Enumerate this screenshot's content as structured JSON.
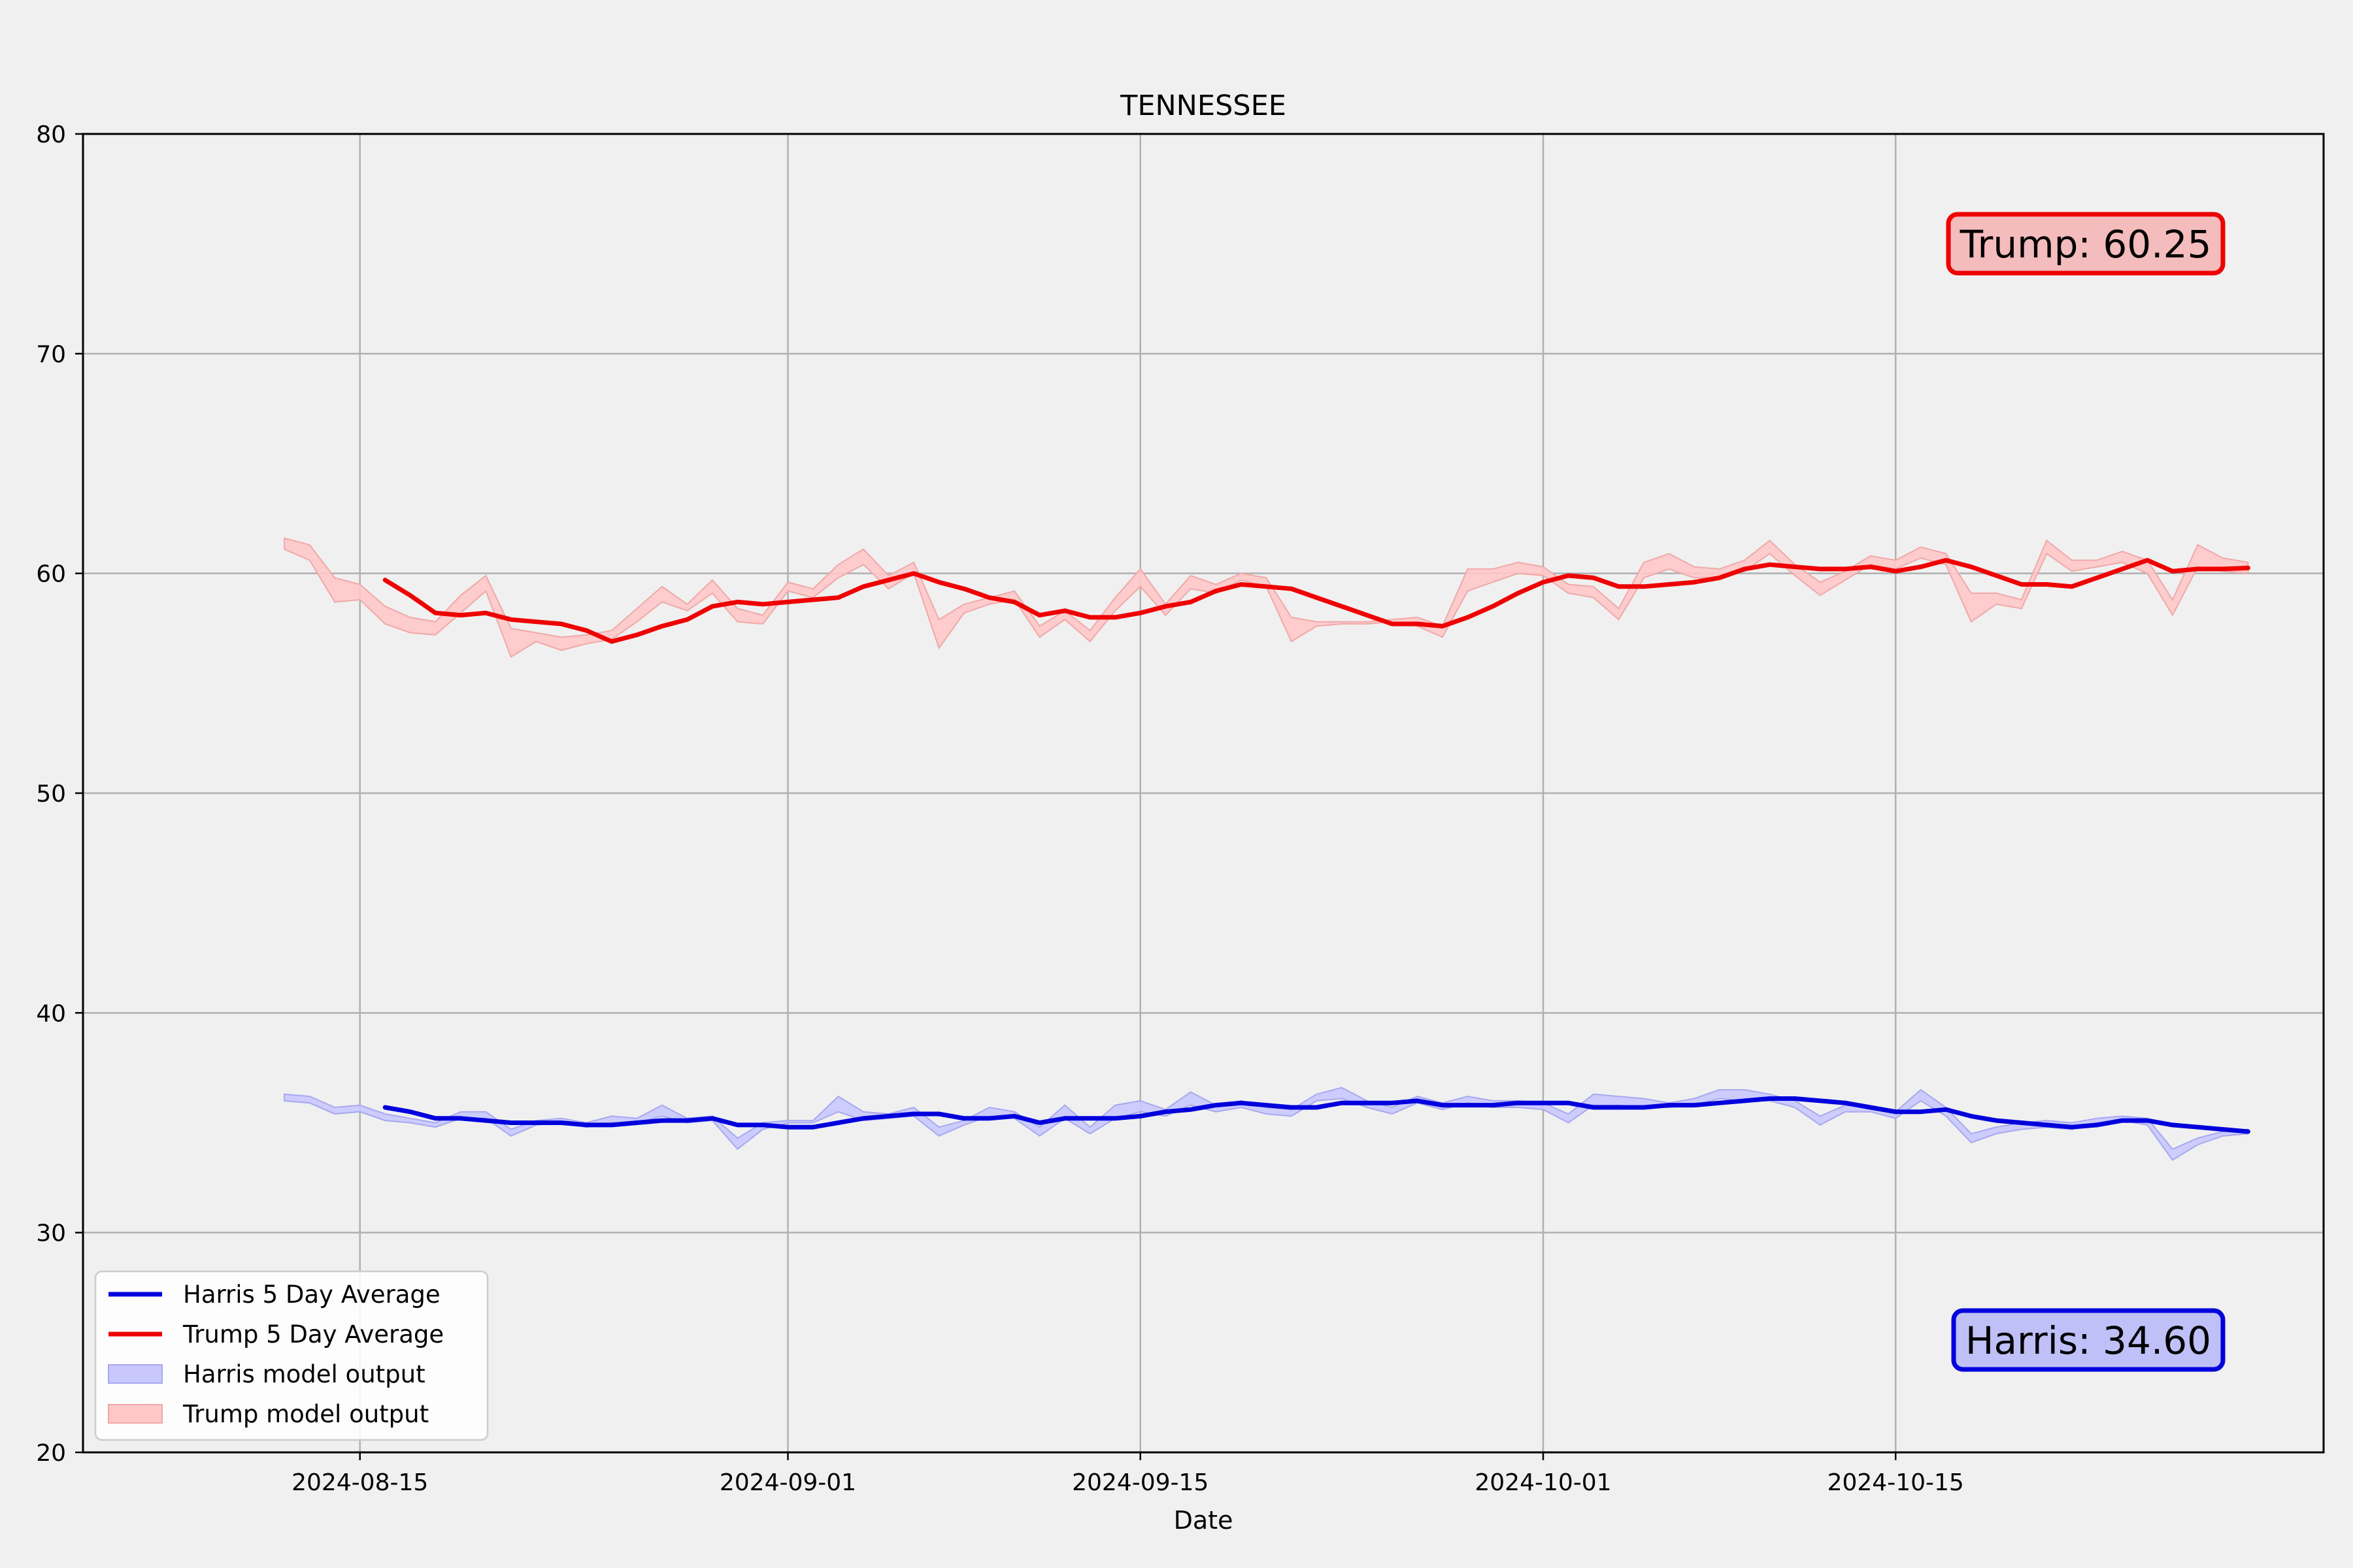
{
  "chart_data": {
    "type": "line",
    "title": "TENNESSEE",
    "xlabel": "Date",
    "ylabel": "",
    "ylim": [
      20,
      80
    ],
    "xlim": [
      "2024-08-04",
      "2024-11-01"
    ],
    "yticks": [
      20,
      30,
      40,
      50,
      60,
      70,
      80
    ],
    "xticks": [
      "2024-08-15",
      "2024-09-01",
      "2024-09-15",
      "2024-10-01",
      "2024-10-15"
    ],
    "grid": true,
    "legend_position": "lower-left",
    "colors": {
      "harris": "#0000dd",
      "trump": "#ee0000",
      "harris_band": "#c8c8ff",
      "trump_band": "#ffc8c8",
      "background": "#f0f0f0",
      "grid": "#b0b0b0"
    },
    "series": [
      {
        "name": "Harris 5 Day Average",
        "kind": "line",
        "color": "#0000dd",
        "x": [
          "2024-08-16",
          "2024-08-17",
          "2024-08-18",
          "2024-08-19",
          "2024-08-20",
          "2024-08-21",
          "2024-08-22",
          "2024-08-23",
          "2024-08-24",
          "2024-08-25",
          "2024-08-26",
          "2024-08-27",
          "2024-08-28",
          "2024-08-29",
          "2024-08-30",
          "2024-08-31",
          "2024-09-01",
          "2024-09-02",
          "2024-09-03",
          "2024-09-04",
          "2024-09-05",
          "2024-09-06",
          "2024-09-07",
          "2024-09-08",
          "2024-09-09",
          "2024-09-10",
          "2024-09-11",
          "2024-09-12",
          "2024-09-13",
          "2024-09-14",
          "2024-09-15",
          "2024-09-16",
          "2024-09-17",
          "2024-09-18",
          "2024-09-19",
          "2024-09-20",
          "2024-09-21",
          "2024-09-22",
          "2024-09-23",
          "2024-09-24",
          "2024-09-25",
          "2024-09-26",
          "2024-09-27",
          "2024-09-28",
          "2024-09-29",
          "2024-09-30",
          "2024-10-01",
          "2024-10-02",
          "2024-10-03",
          "2024-10-04",
          "2024-10-05",
          "2024-10-06",
          "2024-10-07",
          "2024-10-08",
          "2024-10-09",
          "2024-10-10",
          "2024-10-11",
          "2024-10-12",
          "2024-10-13",
          "2024-10-14",
          "2024-10-15",
          "2024-10-16",
          "2024-10-17",
          "2024-10-18",
          "2024-10-19",
          "2024-10-20",
          "2024-10-21",
          "2024-10-22",
          "2024-10-23",
          "2024-10-24",
          "2024-10-25",
          "2024-10-26",
          "2024-10-27",
          "2024-10-28",
          "2024-10-29"
        ],
        "y": [
          35.7,
          35.5,
          35.2,
          35.2,
          35.1,
          35.0,
          35.0,
          35.0,
          34.9,
          34.9,
          35.0,
          35.1,
          35.1,
          35.2,
          34.9,
          34.9,
          34.8,
          34.8,
          35.0,
          35.2,
          35.3,
          35.4,
          35.4,
          35.2,
          35.2,
          35.3,
          35.0,
          35.2,
          35.2,
          35.2,
          35.3,
          35.5,
          35.6,
          35.8,
          35.9,
          35.8,
          35.7,
          35.7,
          35.9,
          35.9,
          35.9,
          36.0,
          35.8,
          35.8,
          35.8,
          35.9,
          35.9,
          35.9,
          35.7,
          35.7,
          35.7,
          35.8,
          35.8,
          35.9,
          36.0,
          36.1,
          36.1,
          36.0,
          35.9,
          35.7,
          35.5,
          35.5,
          35.6,
          35.3,
          35.1,
          35.0,
          34.9,
          34.8,
          34.9,
          35.1,
          35.1,
          34.9,
          34.8,
          34.7,
          34.6
        ]
      },
      {
        "name": "Trump 5 Day Average",
        "kind": "line",
        "color": "#ee0000",
        "x": [
          "2024-08-16",
          "2024-08-17",
          "2024-08-18",
          "2024-08-19",
          "2024-08-20",
          "2024-08-21",
          "2024-08-22",
          "2024-08-23",
          "2024-08-24",
          "2024-08-25",
          "2024-08-26",
          "2024-08-27",
          "2024-08-28",
          "2024-08-29",
          "2024-08-30",
          "2024-08-31",
          "2024-09-01",
          "2024-09-02",
          "2024-09-03",
          "2024-09-04",
          "2024-09-05",
          "2024-09-06",
          "2024-09-07",
          "2024-09-08",
          "2024-09-09",
          "2024-09-10",
          "2024-09-11",
          "2024-09-12",
          "2024-09-13",
          "2024-09-14",
          "2024-09-15",
          "2024-09-16",
          "2024-09-17",
          "2024-09-18",
          "2024-09-19",
          "2024-09-20",
          "2024-09-21",
          "2024-09-22",
          "2024-09-23",
          "2024-09-24",
          "2024-09-25",
          "2024-09-26",
          "2024-09-27",
          "2024-09-28",
          "2024-09-29",
          "2024-09-30",
          "2024-10-01",
          "2024-10-02",
          "2024-10-03",
          "2024-10-04",
          "2024-10-05",
          "2024-10-06",
          "2024-10-07",
          "2024-10-08",
          "2024-10-09",
          "2024-10-10",
          "2024-10-11",
          "2024-10-12",
          "2024-10-13",
          "2024-10-14",
          "2024-10-15",
          "2024-10-16",
          "2024-10-17",
          "2024-10-18",
          "2024-10-19",
          "2024-10-20",
          "2024-10-21",
          "2024-10-22",
          "2024-10-23",
          "2024-10-24",
          "2024-10-25",
          "2024-10-26",
          "2024-10-27",
          "2024-10-28",
          "2024-10-29"
        ],
        "y": [
          59.7,
          59.0,
          58.2,
          58.1,
          58.2,
          57.9,
          57.8,
          57.7,
          57.4,
          56.9,
          57.2,
          57.6,
          57.9,
          58.5,
          58.7,
          58.6,
          58.7,
          58.8,
          58.9,
          59.4,
          59.7,
          60.0,
          59.6,
          59.3,
          58.9,
          58.7,
          58.1,
          58.3,
          58.0,
          58.0,
          58.2,
          58.5,
          58.7,
          59.2,
          59.5,
          59.4,
          59.3,
          58.9,
          58.5,
          58.1,
          57.7,
          57.7,
          57.6,
          58.0,
          58.5,
          59.1,
          59.6,
          59.9,
          59.8,
          59.4,
          59.4,
          59.5,
          59.6,
          59.8,
          60.2,
          60.4,
          60.3,
          60.2,
          60.2,
          60.3,
          60.1,
          60.3,
          60.6,
          60.3,
          59.9,
          59.5,
          59.5,
          59.4,
          59.8,
          60.2,
          60.6,
          60.1,
          60.2,
          60.2,
          60.25
        ]
      },
      {
        "name": "Harris model output",
        "kind": "band",
        "color": "#c8c8ff",
        "x": [
          "2024-08-12",
          "2024-08-13",
          "2024-08-14",
          "2024-08-15",
          "2024-08-16",
          "2024-08-17",
          "2024-08-18",
          "2024-08-19",
          "2024-08-20",
          "2024-08-21",
          "2024-08-22",
          "2024-08-23",
          "2024-08-24",
          "2024-08-25",
          "2024-08-26",
          "2024-08-27",
          "2024-08-28",
          "2024-08-29",
          "2024-08-30",
          "2024-08-31",
          "2024-09-01",
          "2024-09-02",
          "2024-09-03",
          "2024-09-04",
          "2024-09-05",
          "2024-09-06",
          "2024-09-07",
          "2024-09-08",
          "2024-09-09",
          "2024-09-10",
          "2024-09-11",
          "2024-09-12",
          "2024-09-13",
          "2024-09-14",
          "2024-09-15",
          "2024-09-16",
          "2024-09-17",
          "2024-09-18",
          "2024-09-19",
          "2024-09-20",
          "2024-09-21",
          "2024-09-22",
          "2024-09-23",
          "2024-09-24",
          "2024-09-25",
          "2024-09-26",
          "2024-09-27",
          "2024-09-28",
          "2024-09-29",
          "2024-09-30",
          "2024-10-01",
          "2024-10-02",
          "2024-10-03",
          "2024-10-04",
          "2024-10-05",
          "2024-10-06",
          "2024-10-07",
          "2024-10-08",
          "2024-10-09",
          "2024-10-10",
          "2024-10-11",
          "2024-10-12",
          "2024-10-13",
          "2024-10-14",
          "2024-10-15",
          "2024-10-16",
          "2024-10-17",
          "2024-10-18",
          "2024-10-19",
          "2024-10-20",
          "2024-10-21",
          "2024-10-22",
          "2024-10-23",
          "2024-10-24",
          "2024-10-25",
          "2024-10-26",
          "2024-10-27",
          "2024-10-28",
          "2024-10-29"
        ],
        "lower": [
          36.0,
          35.9,
          35.4,
          35.5,
          35.1,
          35.0,
          34.8,
          35.2,
          35.2,
          34.4,
          34.9,
          35.0,
          34.8,
          35.0,
          35.0,
          35.3,
          35.0,
          35.1,
          33.8,
          34.7,
          35.0,
          35.0,
          35.5,
          35.1,
          35.2,
          35.3,
          34.4,
          34.9,
          35.3,
          35.2,
          34.4,
          35.2,
          34.5,
          35.2,
          35.5,
          35.3,
          35.8,
          35.5,
          35.7,
          35.4,
          35.3,
          36.0,
          36.1,
          35.7,
          35.4,
          35.9,
          35.6,
          35.9,
          35.7,
          35.7,
          35.6,
          35.0,
          35.8,
          35.8,
          35.7,
          35.7,
          35.8,
          36.1,
          36.0,
          36.0,
          35.7,
          34.9,
          35.5,
          35.5,
          35.2,
          36.0,
          35.3,
          34.1,
          34.5,
          34.7,
          34.8,
          34.7,
          35.0,
          35.1,
          34.9,
          33.3,
          34.0,
          34.4,
          34.5
        ],
        "upper": [
          36.3,
          36.2,
          35.7,
          35.8,
          35.4,
          35.2,
          35.0,
          35.5,
          35.5,
          34.7,
          35.1,
          35.2,
          35.0,
          35.3,
          35.2,
          35.8,
          35.2,
          35.3,
          34.3,
          35.0,
          35.1,
          35.1,
          36.2,
          35.5,
          35.4,
          35.7,
          34.8,
          35.1,
          35.7,
          35.5,
          34.8,
          35.8,
          34.8,
          35.8,
          36.0,
          35.6,
          36.4,
          35.8,
          36.0,
          35.7,
          35.6,
          36.3,
          36.6,
          36.0,
          35.7,
          36.2,
          35.9,
          36.2,
          36.0,
          36.0,
          35.9,
          35.4,
          36.3,
          36.2,
          36.1,
          35.9,
          36.1,
          36.5,
          36.5,
          36.3,
          36.0,
          35.3,
          35.8,
          35.7,
          35.5,
          36.5,
          35.7,
          34.5,
          34.8,
          35.0,
          35.1,
          35.0,
          35.2,
          35.3,
          35.2,
          33.8,
          34.3,
          34.6,
          34.7
        ]
      },
      {
        "name": "Trump model output",
        "kind": "band",
        "color": "#ffc8c8",
        "x": [
          "2024-08-12",
          "2024-08-13",
          "2024-08-14",
          "2024-08-15",
          "2024-08-16",
          "2024-08-17",
          "2024-08-18",
          "2024-08-19",
          "2024-08-20",
          "2024-08-21",
          "2024-08-22",
          "2024-08-23",
          "2024-08-24",
          "2024-08-25",
          "2024-08-26",
          "2024-08-27",
          "2024-08-28",
          "2024-08-29",
          "2024-08-30",
          "2024-08-31",
          "2024-09-01",
          "2024-09-02",
          "2024-09-03",
          "2024-09-04",
          "2024-09-05",
          "2024-09-06",
          "2024-09-07",
          "2024-09-08",
          "2024-09-09",
          "2024-09-10",
          "2024-09-11",
          "2024-09-12",
          "2024-09-13",
          "2024-09-14",
          "2024-09-15",
          "2024-09-16",
          "2024-09-17",
          "2024-09-18",
          "2024-09-19",
          "2024-09-20",
          "2024-09-21",
          "2024-09-22",
          "2024-09-23",
          "2024-09-24",
          "2024-09-25",
          "2024-09-26",
          "2024-09-27",
          "2024-09-28",
          "2024-09-29",
          "2024-09-30",
          "2024-10-01",
          "2024-10-02",
          "2024-10-03",
          "2024-10-04",
          "2024-10-05",
          "2024-10-06",
          "2024-10-07",
          "2024-10-08",
          "2024-10-09",
          "2024-10-10",
          "2024-10-11",
          "2024-10-12",
          "2024-10-13",
          "2024-10-14",
          "2024-10-15",
          "2024-10-16",
          "2024-10-17",
          "2024-10-18",
          "2024-10-19",
          "2024-10-20",
          "2024-10-21",
          "2024-10-22",
          "2024-10-23",
          "2024-10-24",
          "2024-10-25",
          "2024-10-26",
          "2024-10-27",
          "2024-10-28",
          "2024-10-29"
        ],
        "lower": [
          61.1,
          60.6,
          58.7,
          58.8,
          57.7,
          57.3,
          57.2,
          58.2,
          59.2,
          56.2,
          56.9,
          56.5,
          56.8,
          57.0,
          57.8,
          58.7,
          58.3,
          59.1,
          57.8,
          57.7,
          59.2,
          58.9,
          59.8,
          60.4,
          59.3,
          60.0,
          56.6,
          58.2,
          58.6,
          58.8,
          57.1,
          57.9,
          56.9,
          58.3,
          59.4,
          58.1,
          59.3,
          59.1,
          59.7,
          59.4,
          56.9,
          57.6,
          57.7,
          57.7,
          57.8,
          57.6,
          57.1,
          59.2,
          59.6,
          60.0,
          59.9,
          59.1,
          58.9,
          57.9,
          59.8,
          60.2,
          59.8,
          59.8,
          60.1,
          60.9,
          59.9,
          59.0,
          59.7,
          60.4,
          60.2,
          60.7,
          60.4,
          57.8,
          58.6,
          58.4,
          60.9,
          60.1,
          60.3,
          60.5,
          60.0,
          58.1,
          60.3,
          60.1,
          60.0
        ],
        "upper": [
          61.6,
          61.3,
          59.8,
          59.5,
          58.5,
          58.0,
          57.8,
          59.0,
          59.9,
          57.5,
          57.3,
          57.1,
          57.2,
          57.4,
          58.4,
          59.4,
          58.6,
          59.7,
          58.4,
          58.1,
          59.6,
          59.3,
          60.4,
          61.1,
          59.9,
          60.5,
          57.9,
          58.6,
          58.9,
          59.2,
          57.6,
          58.3,
          57.4,
          58.9,
          60.2,
          58.6,
          59.9,
          59.5,
          60.0,
          59.8,
          58.0,
          57.8,
          57.8,
          57.8,
          57.9,
          58.0,
          57.6,
          60.2,
          60.2,
          60.5,
          60.3,
          59.5,
          59.4,
          58.4,
          60.5,
          60.9,
          60.3,
          60.2,
          60.6,
          61.5,
          60.4,
          59.6,
          60.1,
          60.8,
          60.6,
          61.2,
          60.9,
          59.1,
          59.1,
          58.8,
          61.5,
          60.6,
          60.6,
          61.0,
          60.6,
          58.8,
          61.3,
          60.7,
          60.5
        ]
      }
    ],
    "annotations": [
      {
        "text": "Trump: 60.25",
        "series": "trump",
        "position": "upper-right"
      },
      {
        "text": "Harris: 34.60",
        "series": "harris",
        "position": "lower-right"
      }
    ]
  }
}
